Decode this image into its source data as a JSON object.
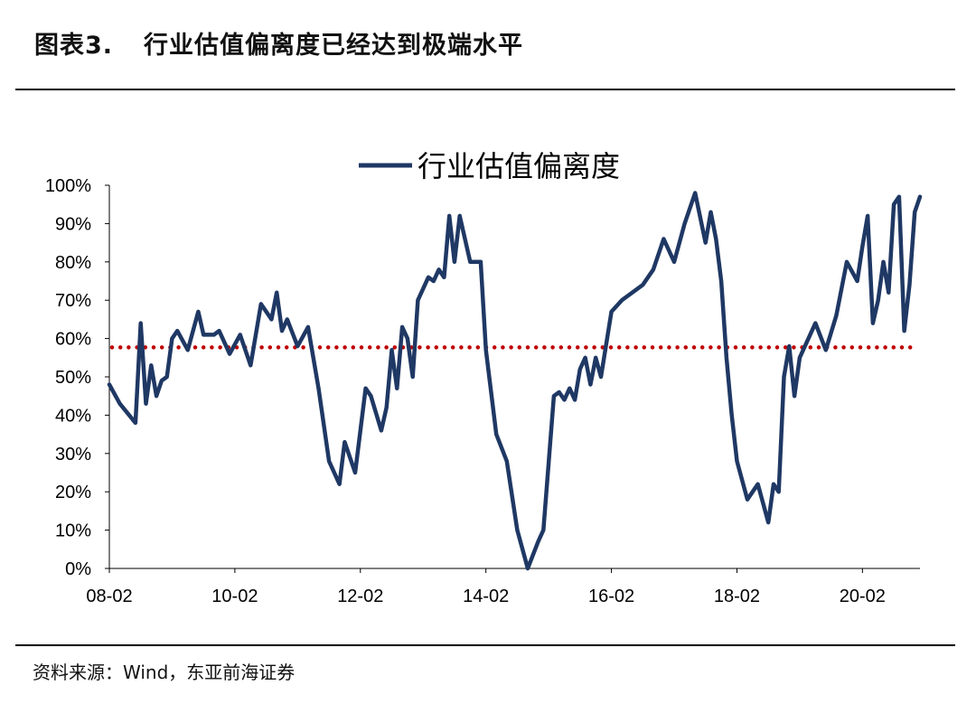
{
  "figure": {
    "label": "图表3.",
    "title": "行业估值偏离度已经达到极端水平",
    "source": "资料来源：Wind，东亚前海证券"
  },
  "chart_data": {
    "type": "line",
    "legend_position": "top-center",
    "grid": false,
    "x_range": [
      "2008-02",
      "2021-01"
    ],
    "x_tick_labels": [
      "08-02",
      "10-02",
      "12-02",
      "14-02",
      "16-02",
      "18-02",
      "20-02"
    ],
    "ylim": [
      0,
      100
    ],
    "y_tick_labels": [
      "0%",
      "10%",
      "20%",
      "30%",
      "40%",
      "50%",
      "60%",
      "70%",
      "80%",
      "90%",
      "100%"
    ],
    "reference_line": {
      "value": 57.7,
      "style": "dotted",
      "color": "#c00000"
    },
    "series": [
      {
        "name": "行业估值偏离度",
        "color": "#1f3864",
        "x": [
          "2008-02",
          "2008-04",
          "2008-07",
          "2008-08",
          "2008-09",
          "2008-10",
          "2008-11",
          "2008-12",
          "2009-01",
          "2009-02",
          "2009-03",
          "2009-05",
          "2009-07",
          "2009-08",
          "2009-10",
          "2009-11",
          "2010-01",
          "2010-03",
          "2010-05",
          "2010-07",
          "2010-09",
          "2010-10",
          "2010-11",
          "2010-12",
          "2011-02",
          "2011-04",
          "2011-06",
          "2011-08",
          "2011-10",
          "2011-11",
          "2012-01",
          "2012-03",
          "2012-04",
          "2012-06",
          "2012-07",
          "2012-08",
          "2012-09",
          "2012-10",
          "2012-11",
          "2012-12",
          "2013-01",
          "2013-03",
          "2013-04",
          "2013-05",
          "2013-06",
          "2013-07",
          "2013-08",
          "2013-09",
          "2013-11",
          "2014-01",
          "2014-02",
          "2014-04",
          "2014-06",
          "2014-08",
          "2014-10",
          "2014-12",
          "2015-01",
          "2015-03",
          "2015-04",
          "2015-05",
          "2015-06",
          "2015-07",
          "2015-08",
          "2015-09",
          "2015-10",
          "2015-11",
          "2015-12",
          "2016-02",
          "2016-04",
          "2016-06",
          "2016-08",
          "2016-10",
          "2016-12",
          "2017-02",
          "2017-04",
          "2017-06",
          "2017-08",
          "2017-09",
          "2017-10",
          "2017-11",
          "2017-12",
          "2018-01",
          "2018-02",
          "2018-04",
          "2018-06",
          "2018-08",
          "2018-09",
          "2018-10",
          "2018-11",
          "2018-12",
          "2019-01",
          "2019-02",
          "2019-03",
          "2019-05",
          "2019-07",
          "2019-09",
          "2019-11",
          "2020-01",
          "2020-02",
          "2020-03",
          "2020-04",
          "2020-05",
          "2020-06",
          "2020-07",
          "2020-08",
          "2020-09",
          "2020-10",
          "2020-11",
          "2020-12",
          "2021-01"
        ],
        "values": [
          48,
          43,
          38,
          64,
          43,
          53,
          45,
          49,
          50,
          60,
          62,
          57,
          67,
          61,
          61,
          62,
          56,
          61,
          53,
          69,
          65,
          72,
          62,
          65,
          58,
          63,
          47,
          28,
          22,
          33,
          25,
          47,
          45,
          36,
          42,
          57,
          47,
          63,
          60,
          50,
          70,
          76,
          75,
          78,
          76,
          92,
          80,
          92,
          80,
          80,
          57,
          35,
          28,
          10,
          0,
          7,
          10,
          45,
          46,
          44,
          47,
          44,
          52,
          55,
          48,
          55,
          50,
          67,
          70,
          72,
          74,
          78,
          86,
          80,
          90,
          98,
          85,
          93,
          86,
          75,
          55,
          40,
          28,
          18,
          22,
          12,
          22,
          20,
          50,
          58,
          45,
          55,
          58,
          64,
          57,
          66,
          80,
          75,
          84,
          92,
          64,
          70,
          80,
          72,
          95,
          97,
          62,
          74,
          93,
          97
        ]
      }
    ]
  }
}
